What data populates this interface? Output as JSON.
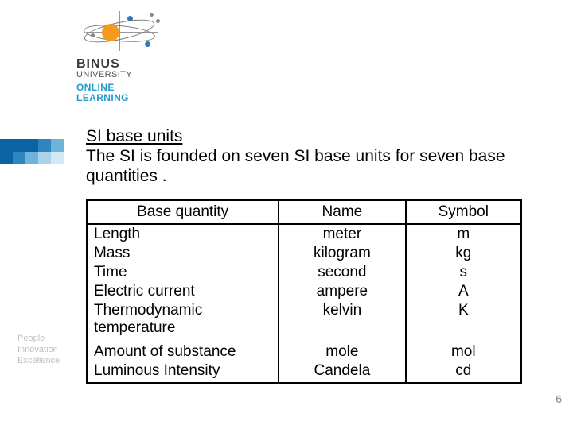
{
  "logo": {
    "brand": "BINUS",
    "sub": "UNIVERSITY",
    "line1": "ONLINE",
    "line2": "LEARNING",
    "brand_color": "#3a3a3a",
    "online_color": "#1f9bcf",
    "orange": "#f59a1c",
    "blue_dot": "#2f77b8"
  },
  "side_palette": {
    "rows": [
      [
        "#0b63a3",
        "#0b63a3",
        "#0b63a3",
        "#2f86bf",
        "#6fb3d9"
      ],
      [
        "#0b63a3",
        "#2f86bf",
        "#6fb3d9",
        "#a9d3e8",
        "#d2e8f3"
      ]
    ]
  },
  "tagline": {
    "l1": "People",
    "l2": "Innovation",
    "l3": "Excellence"
  },
  "content": {
    "heading": "SI base units",
    "desc": "The SI is founded on seven SI base units for seven base quantities ."
  },
  "table": {
    "columns": [
      "Base quantity",
      "Name",
      "Symbol"
    ],
    "groups": [
      [
        {
          "q": "Length",
          "n": "meter",
          "s": "m"
        },
        {
          "q": "Mass",
          "n": "kilogram",
          "s": "kg"
        },
        {
          "q": "Time",
          "n": "second",
          "s": "s"
        },
        {
          "q": "Electric current",
          "n": "ampere",
          "s": "A"
        },
        {
          "q": "Thermodynamic temperature",
          "n": "kelvin",
          "s": "K"
        }
      ],
      [
        {
          "q": "Amount of substance",
          "n": "mole",
          "s": "mol"
        },
        {
          "q": "Luminous Intensity",
          "n": "Candela",
          "s": "cd"
        }
      ]
    ],
    "border_color": "#000000",
    "font_size_pt": 14
  },
  "page_number": "6"
}
